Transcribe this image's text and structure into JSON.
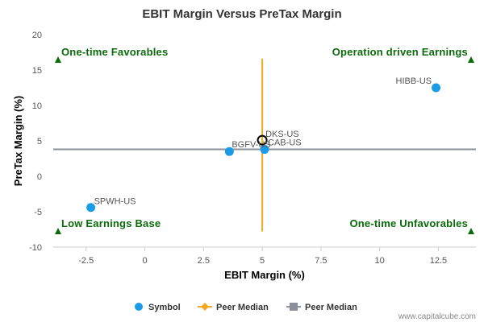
{
  "chart_data": {
    "type": "scatter",
    "title": "EBIT Margin Versus PreTax Margin",
    "xlabel": "EBIT Margin (%)",
    "ylabel": "PreTax Margin (%)",
    "xlim": [
      -3.9,
      14.1
    ],
    "ylim": [
      -10,
      20
    ],
    "xticks": [
      -2.5,
      0,
      2.5,
      5,
      7.5,
      10,
      12.5
    ],
    "xtick_labels": [
      "-2.5",
      "0",
      "2.5",
      "5",
      "7.5",
      "10",
      "12.5"
    ],
    "yticks": [
      -10,
      -5,
      0,
      5,
      10,
      15,
      20
    ],
    "ytick_labels": [
      "-10",
      "-5",
      "0",
      "5",
      "10",
      "15",
      "20"
    ],
    "grid": false,
    "series": [
      {
        "name": "Symbol",
        "color": "#1a9be8",
        "points": [
          {
            "label": "HIBB-US",
            "x": 12.4,
            "y": 12.5
          },
          {
            "label": "DKS-US",
            "x": 5.0,
            "y": 5.1,
            "highlight": true
          },
          {
            "label": "CAB-US",
            "x": 5.1,
            "y": 3.8
          },
          {
            "label": "BGFV-US",
            "x": 3.6,
            "y": 3.5
          },
          {
            "label": "SPWH-US",
            "x": -2.3,
            "y": -4.4
          }
        ]
      },
      {
        "name": "Peer Median",
        "color": "#f5a623",
        "orientation": "vertical",
        "x": 5.0,
        "y_range": [
          -7.8,
          16.6
        ]
      },
      {
        "name": "Peer Median",
        "color": "#8a8f99",
        "orientation": "horizontal",
        "y": 3.8,
        "x_range": [
          -3.9,
          14.1
        ]
      }
    ],
    "quadrant_labels": {
      "top_left": "One-time Favorables",
      "top_right": "Operation driven Earnings",
      "bottom_left": "Low Earnings Base",
      "bottom_right": "One-time Unfavorables"
    },
    "quadrant_marker_color": "#0a6b0a",
    "legend_position": "bottom-center",
    "credit": "www.capitalcube.com"
  }
}
